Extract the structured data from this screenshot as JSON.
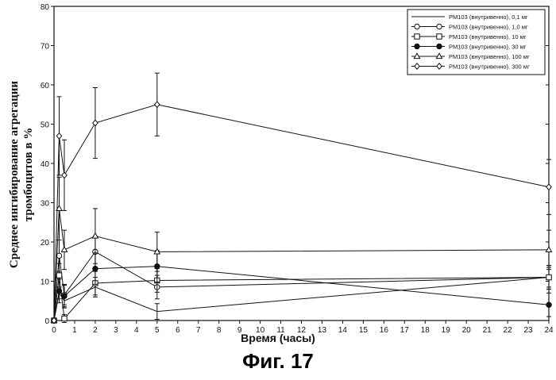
{
  "figure_caption": "Фиг. 17",
  "chart_data": {
    "type": "line",
    "title": "",
    "xlabel": "Время (часы)",
    "ylabel_line1": "Среднее ингибирование агрегации",
    "ylabel_line2": "тромбоцитов в %",
    "xlim": [
      0,
      24
    ],
    "ylim": [
      0,
      80
    ],
    "xticks": [
      0,
      1,
      2,
      3,
      4,
      5,
      6,
      7,
      8,
      9,
      10,
      11,
      12,
      13,
      14,
      15,
      16,
      17,
      18,
      19,
      20,
      21,
      22,
      23,
      24
    ],
    "yticks": [
      0,
      10,
      20,
      30,
      40,
      50,
      60,
      70,
      80
    ],
    "legend_position": "top-right",
    "series": [
      {
        "name": "PM103 (внутривенно), 0,1 мг",
        "marker": "none",
        "x": [
          0,
          0.25,
          0.5,
          2,
          5,
          24
        ],
        "y": [
          0,
          7,
          5,
          8.5,
          2.3,
          11
        ],
        "err": [
          0,
          1.5,
          1.5,
          2.5,
          2,
          2.5
        ]
      },
      {
        "name": "PM103 (внутривенно), 1,0 мг",
        "marker": "open-circle",
        "x": [
          0,
          0.25,
          0.5,
          2,
          5,
          24
        ],
        "y": [
          0,
          16.5,
          6.5,
          17.5,
          8.5,
          11
        ],
        "err": [
          0,
          4,
          2.5,
          4,
          3,
          3
        ]
      },
      {
        "name": "PM103 (внутривенно), 10 мг",
        "marker": "open-square",
        "x": [
          0,
          0.25,
          0.5,
          2,
          5,
          24
        ],
        "y": [
          0,
          11.5,
          0.5,
          9.5,
          10.2,
          11
        ],
        "err": [
          0,
          3,
          1,
          3,
          3,
          3
        ]
      },
      {
        "name": "PM103 (внутривенно), 30 мг",
        "marker": "filled-circle",
        "x": [
          0,
          0.25,
          0.5,
          2,
          5,
          24
        ],
        "y": [
          0,
          7.5,
          6.2,
          13.2,
          13.8,
          4
        ],
        "err": [
          0,
          3,
          3,
          4,
          4,
          3
        ]
      },
      {
        "name": "PM103 (внутривенно), 100 мг",
        "marker": "open-triangle",
        "x": [
          0,
          0.25,
          0.5,
          2,
          5,
          24
        ],
        "y": [
          0,
          28.5,
          18,
          21.5,
          17.5,
          18
        ],
        "err": [
          0,
          8,
          5,
          7,
          5,
          5
        ]
      },
      {
        "name": "PM103 (внутривенно), 300 мг",
        "marker": "open-diamond",
        "x": [
          0,
          0.25,
          0.5,
          2,
          5,
          24
        ],
        "y": [
          0,
          47,
          37,
          50.3,
          55,
          34
        ],
        "err": [
          0,
          10,
          9,
          9,
          8,
          7
        ]
      }
    ]
  }
}
